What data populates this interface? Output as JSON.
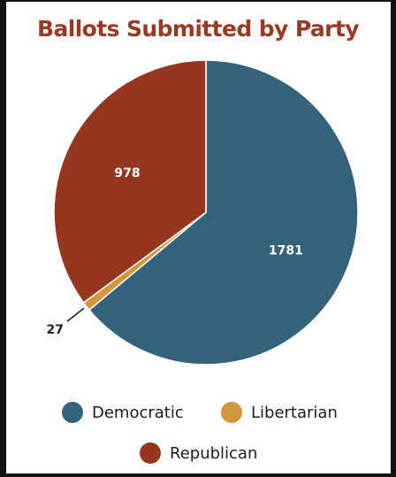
{
  "chart_data": {
    "type": "pie",
    "title": "Ballots Submitted by Party",
    "legend_placement": "bottom",
    "slices": [
      {
        "name": "Democratic",
        "value": 1781,
        "color": "#34617c"
      },
      {
        "name": "Libertarian",
        "value": 27,
        "color": "#d4963b"
      },
      {
        "name": "Republican",
        "value": 978,
        "color": "#97361f"
      }
    ],
    "slice_labels": [
      "1781",
      "27",
      "978"
    ],
    "legend": [
      "Democratic",
      "Libertarian",
      "Republican"
    ]
  }
}
